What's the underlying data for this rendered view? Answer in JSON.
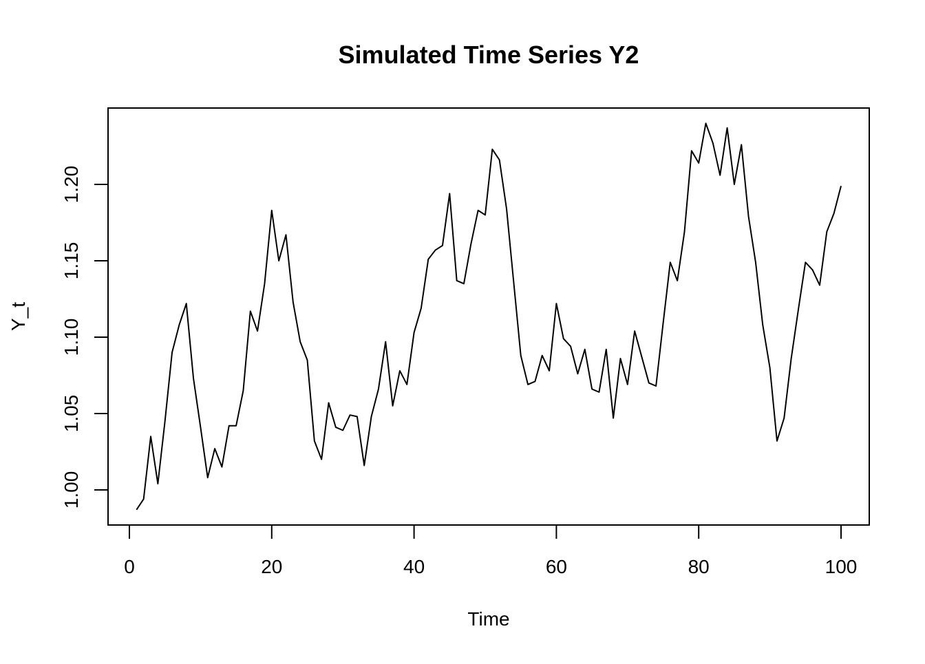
{
  "chart_data": {
    "type": "line",
    "title": "Simulated Time Series Y2",
    "xlabel": "Time",
    "ylabel": "Y_t",
    "xlim": [
      0,
      100
    ],
    "ylim": [
      0.977,
      1.25
    ],
    "xticks": [
      0,
      20,
      40,
      60,
      80,
      100
    ],
    "xtick_labels": [
      "0",
      "20",
      "40",
      "60",
      "80",
      "100"
    ],
    "yticks": [
      1.0,
      1.05,
      1.1,
      1.15,
      1.2
    ],
    "ytick_labels": [
      "1.00",
      "1.05",
      "1.10",
      "1.15",
      "1.20"
    ],
    "grid": false,
    "legend": "none",
    "line_color": "#000000",
    "series": [
      {
        "x": [
          1,
          2,
          3,
          4,
          5,
          6,
          7,
          8,
          9,
          10,
          11,
          12,
          13,
          14,
          15,
          16,
          17,
          18,
          19,
          20,
          21,
          22,
          23,
          24,
          25,
          26,
          27,
          28,
          29,
          30,
          31,
          32,
          33,
          34,
          35,
          36,
          37,
          38,
          39,
          40,
          41,
          42,
          43,
          44,
          45,
          46,
          47,
          48,
          49,
          50,
          51,
          52,
          53,
          54,
          55,
          56,
          57,
          58,
          59,
          60,
          61,
          62,
          63,
          64,
          65,
          66,
          67,
          68,
          69,
          70,
          71,
          72,
          73,
          74,
          75,
          76,
          77,
          78,
          79,
          80,
          81,
          82,
          83,
          84,
          85,
          86,
          87,
          88,
          89,
          90,
          91,
          92,
          93,
          94,
          95,
          96,
          97,
          98,
          99,
          100
        ],
        "values": [
          0.987,
          0.994,
          1.035,
          1.004,
          1.045,
          1.09,
          1.108,
          1.122,
          1.073,
          1.041,
          1.008,
          1.027,
          1.015,
          1.042,
          1.042,
          1.065,
          1.117,
          1.104,
          1.135,
          1.183,
          1.15,
          1.167,
          1.123,
          1.097,
          1.085,
          1.032,
          1.02,
          1.057,
          1.041,
          1.039,
          1.049,
          1.048,
          1.016,
          1.048,
          1.066,
          1.097,
          1.055,
          1.078,
          1.069,
          1.103,
          1.119,
          1.151,
          1.157,
          1.16,
          1.194,
          1.137,
          1.135,
          1.161,
          1.183,
          1.18,
          1.223,
          1.216,
          1.184,
          1.136,
          1.088,
          1.069,
          1.071,
          1.088,
          1.078,
          1.122,
          1.099,
          1.094,
          1.076,
          1.092,
          1.066,
          1.064,
          1.092,
          1.047,
          1.086,
          1.069,
          1.104,
          1.087,
          1.07,
          1.068,
          1.109,
          1.149,
          1.137,
          1.169,
          1.222,
          1.214,
          1.24,
          1.227,
          1.206,
          1.237,
          1.2,
          1.226,
          1.179,
          1.149,
          1.108,
          1.08,
          1.032,
          1.047,
          1.086,
          1.118,
          1.149,
          1.144,
          1.134,
          1.169,
          1.181,
          1.199
        ]
      }
    ]
  }
}
